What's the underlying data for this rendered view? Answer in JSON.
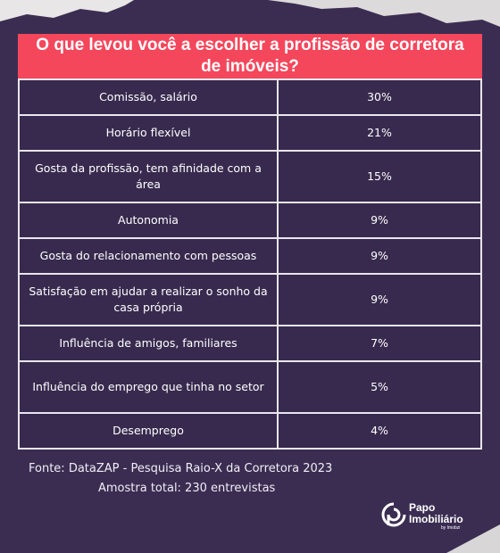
{
  "title": "O que levou você a escolher a profissão de corretora de imóveis?",
  "table": {
    "rows": [
      [
        "Comissão, salário",
        "30%"
      ],
      [
        "Horário flexível",
        "21%"
      ],
      [
        "Gosta da profissão, tem afinidade com a área",
        "15%"
      ],
      [
        "Autonomia",
        "9%"
      ],
      [
        "Gosta do relacionamento com pessoas",
        "9%"
      ],
      [
        "Satisfação em ajudar a realizar o sonho da casa própria",
        "9%"
      ],
      [
        "Influência de amigos, familiares",
        "7%"
      ],
      [
        "Influência do emprego que tinha no setor",
        "5%"
      ],
      [
        "Desemprego",
        "4%"
      ]
    ]
  },
  "source": [
    "Fonte:  DataZAP - Pesquisa Raio-X da Corretora 2023",
    "Amostra total: 230 entrevistas"
  ],
  "logo": {
    "line1": "Papo",
    "line2": "Imobiliário",
    "tagline": "by Imobzi"
  }
}
